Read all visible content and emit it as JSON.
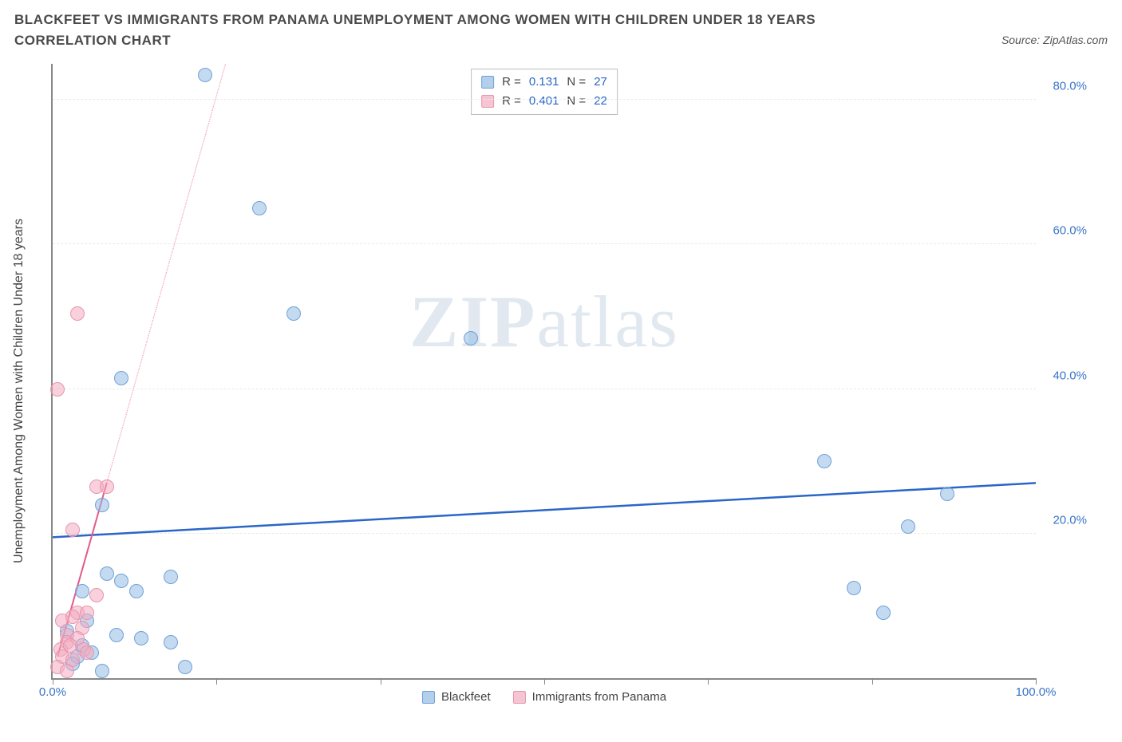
{
  "header": {
    "title": "BLACKFEET VS IMMIGRANTS FROM PANAMA UNEMPLOYMENT AMONG WOMEN WITH CHILDREN UNDER 18 YEARS CORRELATION CHART",
    "source": "Source: ZipAtlas.com"
  },
  "chart": {
    "type": "scatter",
    "ylabel": "Unemployment Among Women with Children Under 18 years",
    "xlim": [
      0,
      100
    ],
    "ylim": [
      0,
      85
    ],
    "xticks": [
      0,
      16.67,
      33.33,
      50,
      66.67,
      83.33,
      100
    ],
    "xtick_labels": {
      "0": "0.0%",
      "100": "100.0%"
    },
    "yticks": [
      20,
      40,
      60,
      80
    ],
    "ytick_labels": {
      "20": "20.0%",
      "40": "40.0%",
      "60": "60.0%",
      "80": "80.0%"
    },
    "background_color": "#ffffff",
    "grid_color": "#e7edea",
    "axis_color": "#888888",
    "tick_label_color": "#3874c8",
    "watermark": {
      "part1": "ZIP",
      "part2": "atlas"
    },
    "series": [
      {
        "name": "Blackfeet",
        "color_fill": "rgba(147,187,227,0.55)",
        "color_stroke": "#6fa2d8",
        "r_value": "0.131",
        "n_value": "27",
        "trend": {
          "x1": 0,
          "y1": 19.5,
          "x2": 100,
          "y2": 27.0,
          "color": "#2a66c8",
          "width": 2.5,
          "dash": "none"
        },
        "points": [
          [
            15.5,
            83.5
          ],
          [
            21.0,
            65.0
          ],
          [
            24.5,
            50.5
          ],
          [
            42.5,
            47.0
          ],
          [
            7.0,
            41.5
          ],
          [
            78.5,
            30.0
          ],
          [
            91.0,
            25.5
          ],
          [
            5.0,
            24.0
          ],
          [
            87.0,
            21.0
          ],
          [
            81.5,
            12.5
          ],
          [
            84.5,
            9.0
          ],
          [
            5.5,
            14.5
          ],
          [
            7.0,
            13.5
          ],
          [
            12.0,
            14.0
          ],
          [
            3.0,
            12.0
          ],
          [
            8.5,
            12.0
          ],
          [
            3.5,
            8.0
          ],
          [
            1.5,
            6.5
          ],
          [
            6.5,
            6.0
          ],
          [
            9.0,
            5.5
          ],
          [
            12.0,
            5.0
          ],
          [
            13.5,
            1.5
          ],
          [
            5.0,
            1.0
          ],
          [
            2.5,
            3.0
          ],
          [
            3.0,
            4.5
          ],
          [
            2.0,
            2.0
          ],
          [
            4.0,
            3.5
          ]
        ]
      },
      {
        "name": "Immigrants from Panama",
        "color_fill": "rgba(242,172,192,0.55)",
        "color_stroke": "#e795b0",
        "r_value": "0.401",
        "n_value": "22",
        "trend": {
          "x1": 0.5,
          "y1": 3.0,
          "x2": 5.5,
          "y2": 27.0,
          "extend_to_y": 85,
          "color": "#e25a8a",
          "width": 2,
          "dash": "5,5"
        },
        "points": [
          [
            2.5,
            50.5
          ],
          [
            0.5,
            40.0
          ],
          [
            4.5,
            26.5
          ],
          [
            5.5,
            26.5
          ],
          [
            2.0,
            20.5
          ],
          [
            1.5,
            6.0
          ],
          [
            2.5,
            9.0
          ],
          [
            3.5,
            9.0
          ],
          [
            1.0,
            8.0
          ],
          [
            2.0,
            8.5
          ],
          [
            4.5,
            11.5
          ],
          [
            3.0,
            7.0
          ],
          [
            1.5,
            5.0
          ],
          [
            2.5,
            5.5
          ],
          [
            0.8,
            4.0
          ],
          [
            1.8,
            4.5
          ],
          [
            3.2,
            4.0
          ],
          [
            1.0,
            3.0
          ],
          [
            2.0,
            2.5
          ],
          [
            0.5,
            1.5
          ],
          [
            1.5,
            1.0
          ],
          [
            3.5,
            3.5
          ]
        ]
      }
    ],
    "legend_top": {
      "r_label": "R =",
      "n_label": "N ="
    },
    "legend_bottom": [
      {
        "swatch": "blue",
        "label": "Blackfeet"
      },
      {
        "swatch": "pink",
        "label": "Immigrants from Panama"
      }
    ]
  }
}
